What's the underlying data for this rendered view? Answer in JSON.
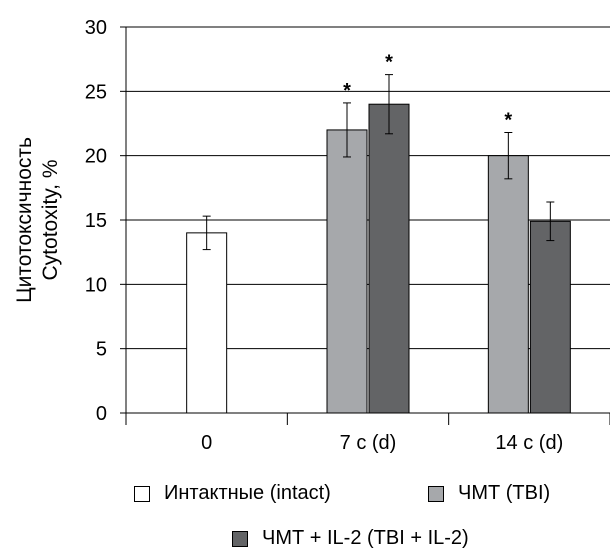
{
  "chart_data": {
    "type": "bar",
    "categories": [
      "0",
      "7 с (d)",
      "14 с (d)"
    ],
    "series": [
      {
        "name": "Интактные (intact)",
        "color": "#ffffff",
        "values": [
          14,
          null,
          null
        ],
        "errors": [
          1.3,
          null,
          null
        ],
        "stars": [
          false,
          false,
          false
        ]
      },
      {
        "name": "ЧМТ (TBI)",
        "color": "#a6a8ab",
        "values": [
          null,
          22,
          20
        ],
        "errors": [
          null,
          2.1,
          1.8
        ],
        "stars": [
          false,
          true,
          true
        ]
      },
      {
        "name": "ЧМТ + IL-2 (TBI + IL-2)",
        "color": "#636466",
        "values": [
          null,
          24,
          14.9
        ],
        "errors": [
          null,
          2.3,
          1.5
        ],
        "stars": [
          false,
          true,
          false
        ]
      }
    ],
    "ylabel_line1": "Цитотоксичность",
    "ylabel_line2": "Cytotoxity, %",
    "xlabel": "",
    "ylim": [
      0,
      30
    ],
    "yticks": [
      0,
      5,
      10,
      15,
      20,
      25,
      30
    ],
    "grid": true,
    "star_symbol": "*",
    "legend_position": "bottom"
  }
}
